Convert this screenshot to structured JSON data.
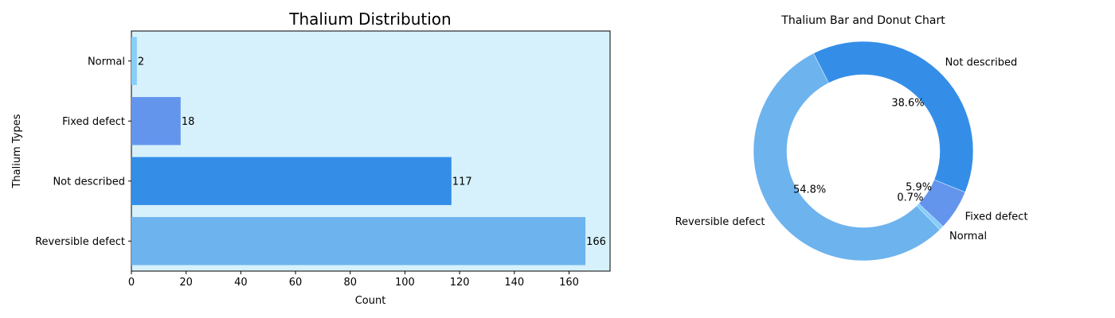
{
  "chart_data": [
    {
      "type": "bar",
      "orientation": "horizontal",
      "title": "Thalium Distribution",
      "xlabel": "Count",
      "ylabel": "Thalium Types",
      "categories": [
        "Normal",
        "Fixed defect",
        "Not described",
        "Reversible defect"
      ],
      "values": [
        2,
        18,
        117,
        166
      ],
      "colors": [
        "#87cefa",
        "#6495ed",
        "#348ee8",
        "#6db3ee"
      ],
      "background": "#d6f1fc",
      "xlim": [
        0,
        175
      ],
      "xticks": [
        0,
        20,
        40,
        60,
        80,
        100,
        120,
        140,
        160
      ],
      "grid": false
    },
    {
      "type": "pie",
      "variant": "donut",
      "title": "Thalium Bar and Donut Chart",
      "labels": [
        "Not described",
        "Reversible defect",
        "Normal",
        "Fixed defect"
      ],
      "values": [
        117,
        166,
        2,
        18
      ],
      "percent_labels": [
        "38.6%",
        "54.8%",
        "0.7%",
        "5.9%"
      ],
      "colors": [
        "#348ee8",
        "#6db3ee",
        "#87cefa",
        "#6495ed"
      ]
    }
  ]
}
